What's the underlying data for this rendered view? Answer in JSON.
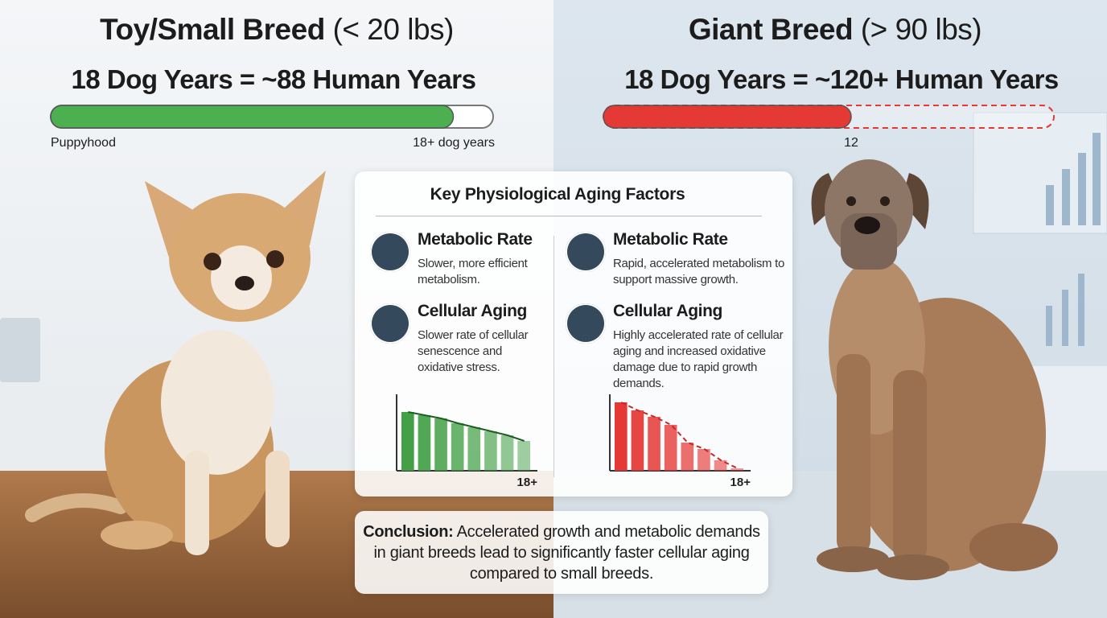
{
  "left": {
    "title": "Toy/Small Breed",
    "title_note": "(< 20 lbs)",
    "equation": "18 Dog Years = ~88 Human Years",
    "progress": {
      "xlim": [
        0,
        100
      ],
      "fill": 91,
      "color": "#4caf50",
      "start_label": "Puppyhood",
      "end_label": "18+ dog years"
    }
  },
  "right": {
    "title": "Giant Breed",
    "title_note": "(> 90 lbs)",
    "equation": "18 Dog Years = ~120+ Human Years",
    "progress": {
      "xlim": [
        0,
        100
      ],
      "fill": 55,
      "color": "#e53935",
      "fill_label": "12"
    }
  },
  "factors": {
    "title": "Key Physiological Aging Factors",
    "columns": [
      {
        "items": [
          {
            "title": "Metabolic Rate",
            "text": "Slower, more efficient metabolism."
          },
          {
            "title": "Cellular Aging",
            "text": "Slower rate of cellular senescence and oxidative stress."
          }
        ],
        "chart": {
          "values": [
            73,
            69,
            65,
            59,
            54,
            49,
            44,
            37
          ],
          "ylim": [
            0,
            100
          ],
          "color": "#43a047",
          "trend": "solid",
          "end_label": "18+"
        }
      },
      {
        "items": [
          {
            "title": "Metabolic Rate",
            "text": "Rapid, accelerated metabolism to support massive growth."
          },
          {
            "title": "Cellular Aging",
            "text": "Highly accelerated rate of cellular aging and increased oxidative damage due to rapid growth demands."
          }
        ],
        "chart": {
          "values": [
            85,
            75,
            67,
            57,
            35,
            27,
            13,
            3
          ],
          "ylim": [
            0,
            100
          ],
          "color": "#e53935",
          "trend": "dashed",
          "end_label": "18+"
        }
      }
    ]
  },
  "conclusion": {
    "label": "Conclusion:",
    "text": "Accelerated growth and metabolic demands in giant breeds lead to significantly faster cellular aging compared to small breeds."
  }
}
